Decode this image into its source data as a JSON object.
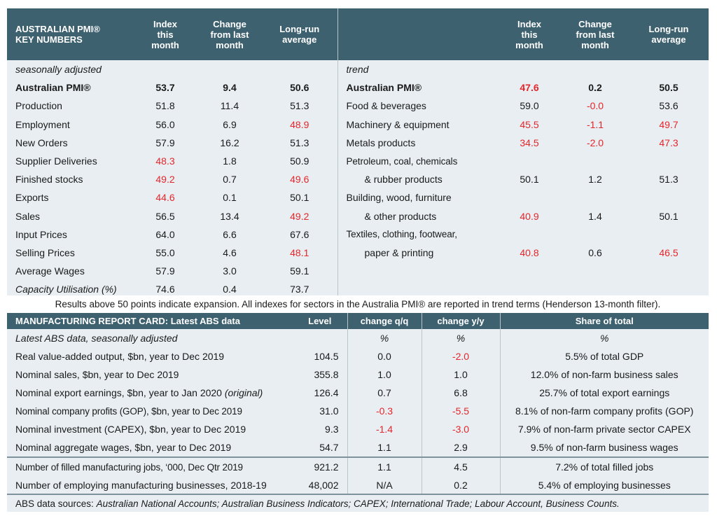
{
  "pmi_table": {
    "headers": {
      "left_label_line1": "AUSTRALIAN PMI®",
      "left_label_line2": "KEY NUMBERS",
      "index_line1": "Index",
      "index_line2": "this",
      "index_line3": "month",
      "change_line1": "Change",
      "change_line2": "from last",
      "change_line3": "month",
      "longrun_line1": "Long-run",
      "longrun_line2": "average"
    },
    "left_subheader": "seasonally adjusted",
    "right_subheader": "trend",
    "left_rows": [
      {
        "label": "Australian PMI®",
        "index": "53.7",
        "change": "9.4",
        "longrun": "50.6"
      },
      {
        "label": "Production",
        "index": "51.8",
        "change": "11.4",
        "longrun": "51.3"
      },
      {
        "label": "Employment",
        "index": "56.0",
        "change": "6.9",
        "longrun": "48.9"
      },
      {
        "label": "New Orders",
        "index": "57.9",
        "change": "16.2",
        "longrun": "51.3"
      },
      {
        "label": "Supplier Deliveries",
        "index": "48.3",
        "change": "1.8",
        "longrun": "50.9"
      },
      {
        "label": "Finished stocks",
        "index": "49.2",
        "change": "0.7",
        "longrun": "49.6"
      },
      {
        "label": "Exports",
        "index": "44.6",
        "change": "0.1",
        "longrun": "50.1"
      },
      {
        "label": "Sales",
        "index": "56.5",
        "change": "13.4",
        "longrun": "49.2"
      },
      {
        "label": "Input Prices",
        "index": "64.0",
        "change": "6.6",
        "longrun": "67.6"
      },
      {
        "label": "Selling Prices",
        "index": "55.0",
        "change": "4.6",
        "longrun": "48.1"
      },
      {
        "label": "Average Wages",
        "index": "57.9",
        "change": "3.0",
        "longrun": "59.1"
      },
      {
        "label": "Capacity Utilisation (%)",
        "index": "74.6",
        "change": "0.4",
        "longrun": "73.7"
      }
    ],
    "right_rows": [
      {
        "label": "Australian PMI®",
        "index": "47.6",
        "change": "0.2",
        "longrun": "50.5"
      },
      {
        "label": "Food & beverages",
        "index": "59.0",
        "change": "-0.0",
        "longrun": "53.6"
      },
      {
        "label": "Machinery & equipment",
        "index": "45.5",
        "change": "-1.1",
        "longrun": "49.7"
      },
      {
        "label": "Metals products",
        "index": "34.5",
        "change": "-2.0",
        "longrun": "47.3"
      },
      {
        "label": "Petroleum, coal, chemicals",
        "index": "",
        "change": "",
        "longrun": ""
      },
      {
        "label": "& rubber products",
        "index": "50.1",
        "change": "1.2",
        "longrun": "51.3"
      },
      {
        "label": "Building, wood, furniture",
        "index": "",
        "change": "",
        "longrun": ""
      },
      {
        "label": "& other products",
        "index": "40.9",
        "change": "1.4",
        "longrun": "50.1"
      },
      {
        "label": "Textiles, clothing, footwear,",
        "index": "",
        "change": "",
        "longrun": ""
      },
      {
        "label": "paper & printing",
        "index": "40.8",
        "change": "0.6",
        "longrun": "46.5"
      },
      {
        "label": "",
        "index": "",
        "change": "",
        "longrun": ""
      },
      {
        "label": "",
        "index": "",
        "change": "",
        "longrun": ""
      }
    ]
  },
  "note": "Results above 50 points indicate expansion. All indexes for sectors in the Australia PMI® are reported in trend terms (Henderson 13-month filter).",
  "report_card": {
    "headers": {
      "title": "MANUFACTURING REPORT CARD: Latest ABS data",
      "level": "Level",
      "qq": "change q/q",
      "yy": "change y/y",
      "share": "Share of total"
    },
    "subheader": {
      "label": "Latest ABS data, seasonally adjusted",
      "qq": "%",
      "yy": "%",
      "share": "%"
    },
    "rows": [
      {
        "label": "Real value-added output, $bn, year to Dec 2019",
        "label_extra": "",
        "level": "104.5",
        "qq": "0.0",
        "yy": "-2.0",
        "share": "5.5% of total GDP"
      },
      {
        "label": "Nominal sales, $bn, year to Dec 2019",
        "label_extra": "",
        "level": "355.8",
        "qq": "1.0",
        "yy": "1.0",
        "share": "12.0% of non-farm business sales"
      },
      {
        "label": "Nominal export earnings, $bn, year to Jan 2020 ",
        "label_extra": "(original)",
        "level": "126.4",
        "qq": "0.7",
        "yy": "6.8",
        "share": "25.7% of total export earnings"
      },
      {
        "label": "Nominal company profits (GOP), $bn, year to Dec 2019",
        "label_extra": "",
        "level": "31.0",
        "qq": "-0.3",
        "yy": "-5.5",
        "share": "8.1% of non-farm company profits (GOP)"
      },
      {
        "label": "Nominal investment (CAPEX), $bn, year to Dec 2019",
        "label_extra": "",
        "level": "9.3",
        "qq": "-1.4",
        "yy": "-3.0",
        "share": "7.9% of non-farm private sector CAPEX"
      },
      {
        "label": "Nominal aggregate wages, $bn, year to Dec 2019",
        "label_extra": "",
        "level": "54.7",
        "qq": "1.1",
        "yy": "2.9",
        "share": "9.5% of non-farm business wages"
      },
      {
        "label": "Number of filled manufacturing jobs, ‘000, Dec Qtr 2019",
        "label_extra": "",
        "level": "921.2",
        "qq": "1.1",
        "yy": "4.5",
        "share": "7.2% of total filled jobs"
      },
      {
        "label": "Number of employing manufacturing businesses, 2018-19",
        "label_extra": "",
        "level": "48,002",
        "qq": "N/A",
        "yy": "0.2",
        "share": "5.4% of employing businesses"
      }
    ]
  },
  "sources": {
    "prefix": "ABS data sources: ",
    "list": "Australian National Accounts; Australian Business Indicators; CAPEX; International Trade; Labour Account, Business Counts."
  },
  "colors": {
    "header_bg": "#3e6170",
    "body_bg": "#e8eef1",
    "negative_red": "#e5262b"
  }
}
